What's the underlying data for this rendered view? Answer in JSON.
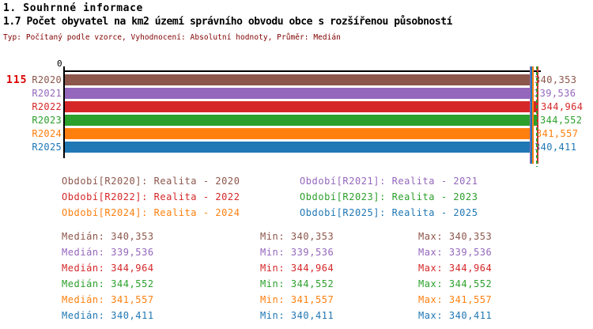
{
  "header": {
    "section_title": "1. Souhrnné informace",
    "indicator_title": "1.7 Počet obyvatel na km2 území správního obvodu obce s rozšířenou působností",
    "meta": "Typ: Počítaný podle vzorce, Vyhodnocení: Absolutní hodnoty, Průměr: Medián"
  },
  "chart": {
    "row_count_label": "115",
    "axis_zero_label": "0",
    "axis_color": "#000000",
    "background": "#ffffff"
  },
  "chart_data": {
    "type": "bar",
    "orientation": "horizontal",
    "title": "1.7 Počet obyvatel na km2 území správního obvodu obce s rozšířenou působností",
    "xlabel": "",
    "ylabel": "",
    "xlim": [
      0,
      344.964
    ],
    "grid": false,
    "categories": [
      "R2020",
      "R2021",
      "R2022",
      "R2023",
      "R2024",
      "R2025"
    ],
    "values": [
      340.353,
      339.536,
      344.964,
      344.552,
      341.557,
      340.411
    ],
    "value_labels": [
      "340,353",
      "339,536",
      "344,964",
      "344,552",
      "341,557",
      "340,411"
    ],
    "colors": [
      "#8c564b",
      "#9467bd",
      "#d62728",
      "#2ca02c",
      "#ff7f0e",
      "#1f77b4"
    ],
    "median_marker_lines": [
      340.353,
      339.536,
      344.964,
      344.552,
      341.557,
      340.411
    ],
    "dashed_marker_index": 3,
    "legend_position": "below"
  },
  "legend": {
    "items": [
      {
        "label": "Období[R2020]: Realita - 2020",
        "color": "#8c564b"
      },
      {
        "label": "Období[R2021]: Realita - 2021",
        "color": "#9467bd"
      },
      {
        "label": "Období[R2022]: Realita - 2022",
        "color": "#d62728"
      },
      {
        "label": "Období[R2023]: Realita - 2023",
        "color": "#2ca02c"
      },
      {
        "label": "Období[R2024]: Realita - 2024",
        "color": "#ff7f0e"
      },
      {
        "label": "Období[R2025]: Realita - 2025",
        "color": "#1f77b4"
      }
    ]
  },
  "stats": {
    "labels": {
      "median": "Medián",
      "min": "Min",
      "max": "Max"
    },
    "rows": [
      {
        "median": "340,353",
        "min": "340,353",
        "max": "340,353",
        "color": "#8c564b"
      },
      {
        "median": "339,536",
        "min": "339,536",
        "max": "339,536",
        "color": "#9467bd"
      },
      {
        "median": "344,964",
        "min": "344,964",
        "max": "344,964",
        "color": "#d62728"
      },
      {
        "median": "344,552",
        "min": "344,552",
        "max": "344,552",
        "color": "#2ca02c"
      },
      {
        "median": "341,557",
        "min": "341,557",
        "max": "341,557",
        "color": "#ff7f0e"
      },
      {
        "median": "340,411",
        "min": "340,411",
        "max": "340,411",
        "color": "#1f77b4"
      }
    ]
  }
}
